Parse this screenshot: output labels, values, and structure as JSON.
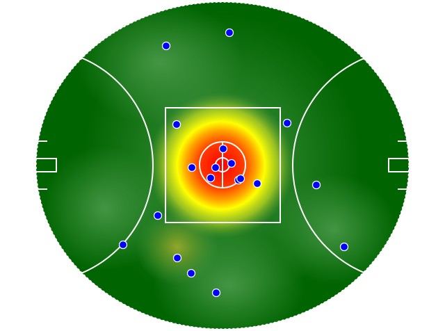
{
  "chart_data": {
    "type": "heatmap",
    "title": "",
    "player_count": 19,
    "colors": {
      "field_dark": "#006400",
      "field_light": "#3f8f3f",
      "line": "#ffffff",
      "heat_hot": "#ff0000",
      "heat_mid": "#ffff00",
      "player_marker": "#0000ff",
      "player_marker_outline": "#ffffff"
    }
  }
}
